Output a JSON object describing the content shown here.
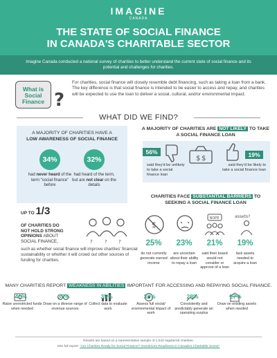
{
  "header": {
    "logo": "IMAGINE",
    "logo_sub": "CANADA",
    "title_line1": "THE STATE OF SOCIAL FINANCE",
    "title_line2": "IN CANADA'S CHARITABLE SECTOR"
  },
  "intro": "Imagine Canada conducted a national survey of charities to better understand the current state of social finance and its potential and challenges for charities.",
  "what_is": {
    "label_line1": "What is",
    "label_line2": "Social",
    "label_line3": "Finance",
    "mark": "?",
    "definition": "For charities, social finance will closely resemble debt financing, such as taking a loan from a bank. The key difference is that social finance is intended to be easier to access and repay, and charities will be expected to use the loan to deliver a social, cultural, and/or environmental impact."
  },
  "section_heading": "WHAT DID WE FIND?",
  "awareness": {
    "title": "A MAJORITY OF CHARITIES HAVE A",
    "title_bold": "LOW AWARENESS OF SOCIAL FINANCE",
    "stat1": {
      "value": "34%",
      "pre": "had",
      "bold": "never heard",
      "post": "of the term “social finance” before"
    },
    "stat2": {
      "value": "32%",
      "pre": "had heard of the term, but are",
      "bold": "not clear",
      "post": "on the details"
    }
  },
  "one_third": {
    "prefix": "UP TO",
    "fraction": "1/3",
    "sub_line1": "OF CHARITIES DO",
    "sub_line2": "NOT HOLD STRONG",
    "sub_line3": "OPINIONS",
    "sub_rest": "ABOUT",
    "sub_line4": "SOCIAL FINANCE,",
    "body": "such as whether social finance will improve charities' financial sustainability or whether it will crowd out other sources of funding for charities."
  },
  "not_likely": {
    "title_pre": "A MAJORITY OF CHARITIES ARE",
    "title_hl": "NOT LIKELY",
    "title_post": "TO TAKE A SOCIAL FINANCE LOAN",
    "stat1": {
      "value": "56%",
      "text": "said they'd be unlikely to take a social finance loan"
    },
    "stat2": {
      "value": "19%",
      "text": "said they'd be likely to take a social finance loan"
    }
  },
  "barriers": {
    "title_pre": "CHARITIES FACE",
    "title_hl": "SUBSTANTIAL BARRIERS",
    "title_post": "TO SEEKING A SOCIAL FINANCE LOAN",
    "nope_label": "NOPE",
    "assets_label": "assets?",
    "items": [
      {
        "value": "25%",
        "text": "do not currently generate earned income"
      },
      {
        "value": "23%",
        "text": "are uncertain about their ability to repay a loan"
      },
      {
        "value": "21%",
        "text": "said their board would not consider or approve of a loan"
      },
      {
        "value": "19%",
        "text": "lack assets needed to acquire a loan"
      }
    ]
  },
  "weaknesses": {
    "title_pre": "MANY CHARITIES REPORT",
    "title_hl": "WEAKNESS IN ABILITIES",
    "title_post": "IMPORTANT FOR ACCESSING AND REPAYING SOCIAL FINANCE.",
    "items": [
      {
        "value": "41%",
        "text": "Raise unrestricted funds when needed"
      },
      {
        "value": "35%",
        "text": "Draw on a diverse range of revenue sources"
      },
      {
        "value": "35%",
        "text": "Collect data to evaluate work"
      },
      {
        "value": "32%",
        "text": "Assess full social/ environmental impact of work"
      },
      {
        "value": "28%",
        "text": "Consistently and predictably generate an operating surplus"
      },
      {
        "value": "27%",
        "text": "Draw on existing assets when needed"
      }
    ]
  },
  "footer": {
    "line1": "Results are based on a representative sample of 1,043 registered charities.",
    "line2_pre": "See full report:",
    "line2_link": "“Are Charities Ready for Social Finance? Investment Readiness in Canada's Charitable Sector”"
  },
  "colors": {
    "teal": "#3aae91",
    "dark_teal": "#2f8f78",
    "panel": "#e4eef6"
  }
}
